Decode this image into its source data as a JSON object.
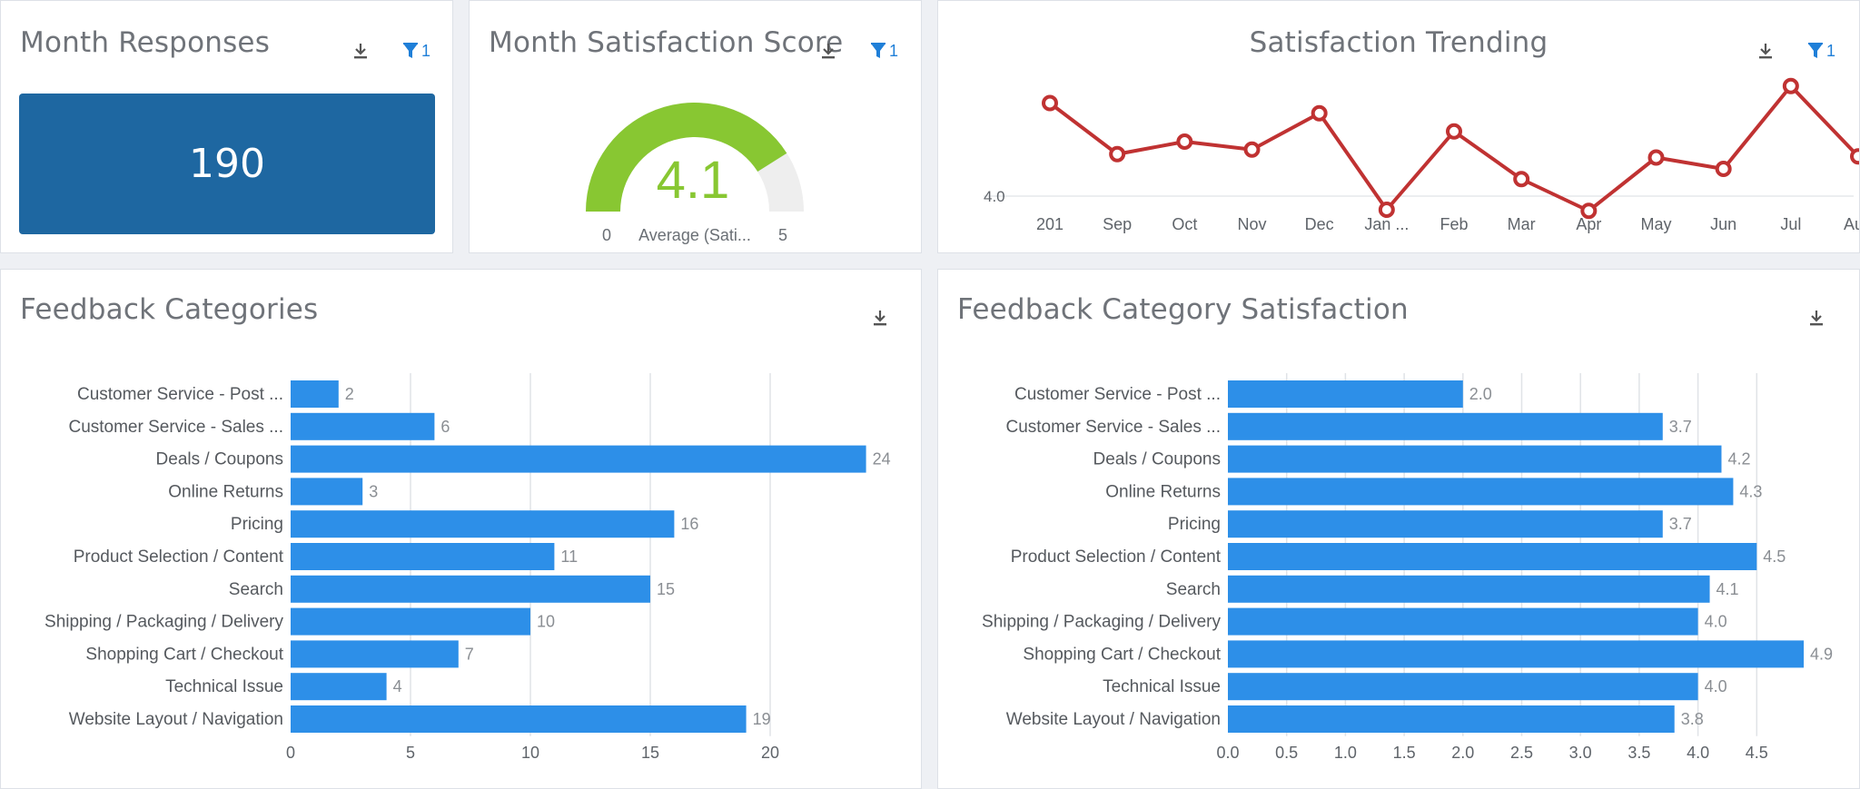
{
  "colors": {
    "tile_blue": "#1e67a1",
    "bar_blue": "#2d8fe8",
    "gauge_green": "#88c732",
    "gauge_track": "#eeeeee",
    "trend_red": "#c03232",
    "filter_blue": "#1f7fd8"
  },
  "widgets": {
    "month_responses": {
      "title": "Month Responses",
      "value": "190",
      "filter_count": "1"
    },
    "month_satisfaction": {
      "title": "Month Satisfaction Score",
      "value": "4.1",
      "min_label": "0",
      "max_label": "5",
      "metric_label": "Average (Sati...",
      "filter_count": "1"
    },
    "satisfaction_trending": {
      "title": "Satisfaction Trending",
      "filter_count": "1"
    },
    "feedback_categories": {
      "title": "Feedback Categories"
    },
    "feedback_category_satisfaction": {
      "title": "Feedback Category Satisfaction"
    }
  },
  "chart_data": [
    {
      "id": "month_satisfaction_gauge",
      "type": "gauge",
      "value": 4.1,
      "min": 0,
      "max": 5
    },
    {
      "id": "satisfaction_trending",
      "type": "line",
      "categories": [
        "201",
        "Sep",
        "Oct",
        "Nov",
        "Dec",
        "Jan ...",
        "Feb",
        "Mar",
        "Apr",
        "May",
        "Jun",
        "Jul",
        "Aug"
      ],
      "values": [
        4.82,
        4.37,
        4.48,
        4.41,
        4.73,
        3.88,
        4.57,
        4.15,
        3.87,
        4.34,
        4.24,
        4.97,
        4.35
      ],
      "y_tick": 4.0,
      "ylim": [
        3.8,
        5.0
      ],
      "color": "#c03232"
    },
    {
      "id": "feedback_categories",
      "type": "bar",
      "orientation": "horizontal",
      "categories": [
        "Customer Service - Post ...",
        "Customer Service - Sales ...",
        "Deals / Coupons",
        "Online Returns",
        "Pricing",
        "Product Selection / Content",
        "Search",
        "Shipping / Packaging / Delivery",
        "Shopping Cart / Checkout",
        "Technical Issue",
        "Website Layout / Navigation"
      ],
      "values": [
        2,
        6,
        24,
        3,
        16,
        11,
        15,
        10,
        7,
        4,
        19
      ],
      "value_labels": [
        "2",
        "6",
        "24",
        "3",
        "16",
        "11",
        "15",
        "10",
        "7",
        "4",
        "19"
      ],
      "ticks": [
        0,
        5,
        10,
        15,
        20
      ],
      "tick_labels": [
        "0",
        "5",
        "10",
        "15",
        "20"
      ],
      "xlim": [
        0,
        25
      ],
      "grid": true
    },
    {
      "id": "feedback_category_satisfaction",
      "type": "bar",
      "orientation": "horizontal",
      "categories": [
        "Customer Service - Post ...",
        "Customer Service - Sales ...",
        "Deals / Coupons",
        "Online Returns",
        "Pricing",
        "Product Selection / Content",
        "Search",
        "Shipping / Packaging / Delivery",
        "Shopping Cart / Checkout",
        "Technical Issue",
        "Website Layout / Navigation"
      ],
      "values": [
        2.0,
        3.7,
        4.2,
        4.3,
        3.7,
        4.5,
        4.1,
        4.0,
        4.9,
        4.0,
        3.8
      ],
      "value_labels": [
        "2.0",
        "3.7",
        "4.2",
        "4.3",
        "3.7",
        "4.5",
        "4.1",
        "4.0",
        "4.9",
        "4.0",
        "3.8"
      ],
      "ticks": [
        0,
        0.5,
        1,
        1.5,
        2,
        2.5,
        3,
        3.5,
        4,
        4.5
      ],
      "tick_labels": [
        "0.0",
        "0.5",
        "1.0",
        "1.5",
        "2.0",
        "2.5",
        "3.0",
        "3.5",
        "4.0",
        "4.5"
      ],
      "xlim": [
        0,
        5
      ],
      "grid": true
    }
  ]
}
